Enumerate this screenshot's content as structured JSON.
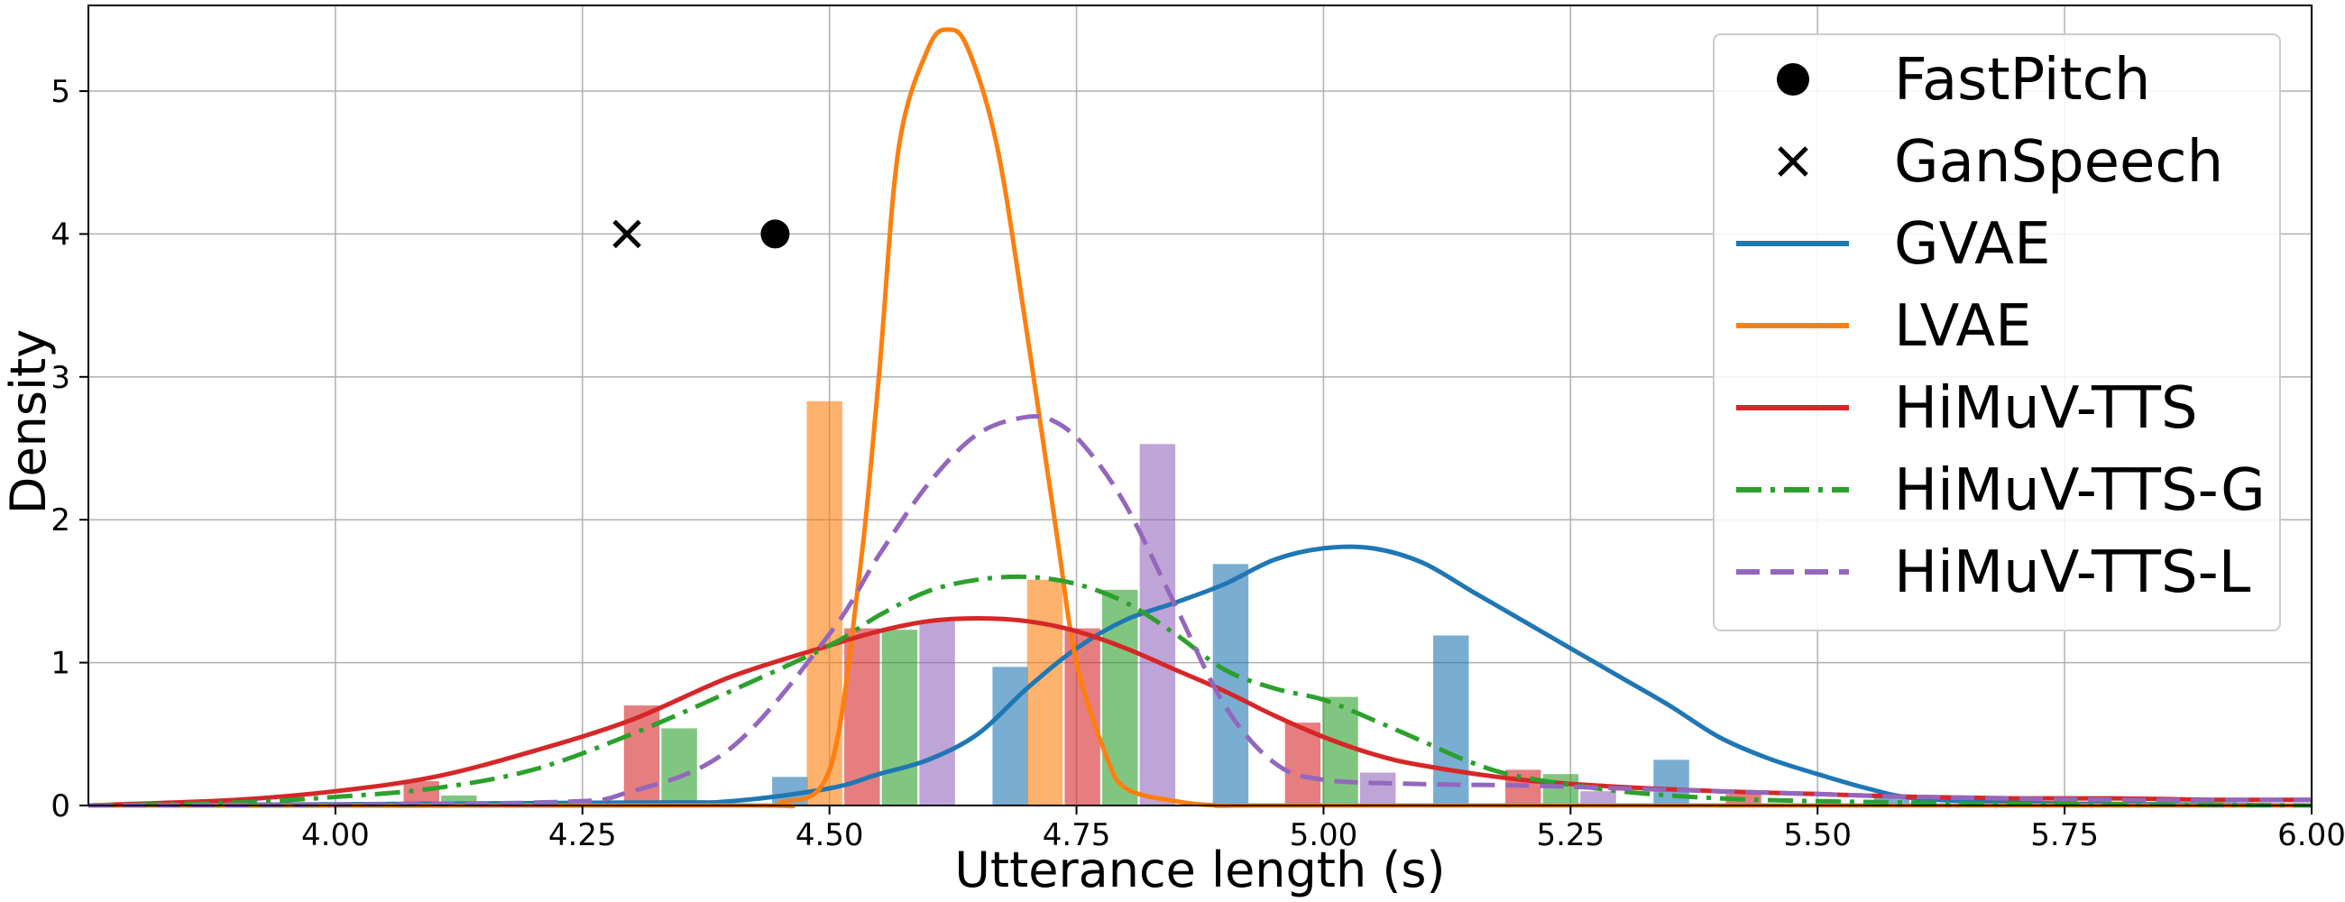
{
  "chart_data": {
    "type": "line",
    "xlabel": "Utterance length (s)",
    "ylabel": "Density",
    "xlim": [
      3.75,
      6.0
    ],
    "ylim": [
      0,
      5.6
    ],
    "xticks": [
      4.0,
      4.25,
      4.5,
      4.75,
      5.0,
      5.25,
      5.5,
      5.75,
      6.0
    ],
    "xtick_labels": [
      "4.00",
      "4.25",
      "4.50",
      "4.75",
      "5.00",
      "5.25",
      "5.50",
      "5.75",
      "6.00"
    ],
    "yticks": [
      0,
      1,
      2,
      3,
      4,
      5
    ],
    "ytick_labels": [
      "0",
      "1",
      "2",
      "3",
      "4",
      "5"
    ],
    "grid": true,
    "legend_position": "top-right",
    "points": [
      {
        "name": "FastPitch",
        "marker": "circle",
        "x": 4.445,
        "y": 4.0,
        "color": "#000000"
      },
      {
        "name": "GanSpeech",
        "marker": "x",
        "x": 4.295,
        "y": 4.0,
        "color": "#000000"
      }
    ],
    "series": [
      {
        "name": "GVAE",
        "color": "#1f77b4",
        "dash": "solid",
        "x": [
          3.75,
          4.3,
          4.4,
          4.5,
          4.55,
          4.6,
          4.65,
          4.7,
          4.75,
          4.8,
          4.85,
          4.9,
          4.95,
          5.0,
          5.05,
          5.1,
          5.15,
          5.2,
          5.25,
          5.3,
          5.35,
          5.4,
          5.45,
          5.5,
          5.55,
          5.6,
          5.7,
          5.8,
          6.0
        ],
        "y": [
          0,
          0.02,
          0.03,
          0.12,
          0.22,
          0.32,
          0.5,
          0.82,
          1.1,
          1.3,
          1.42,
          1.55,
          1.72,
          1.8,
          1.8,
          1.7,
          1.5,
          1.3,
          1.1,
          0.9,
          0.7,
          0.48,
          0.33,
          0.22,
          0.12,
          0.05,
          0.02,
          0.01,
          0.0
        ]
      },
      {
        "name": "LVAE",
        "color": "#ff7f0e",
        "dash": "solid",
        "x": [
          3.75,
          4.4,
          4.45,
          4.5,
          4.53,
          4.55,
          4.57,
          4.6,
          4.62,
          4.64,
          4.67,
          4.7,
          4.73,
          4.75,
          4.78,
          4.8,
          4.85,
          4.9,
          5.0,
          6.0
        ],
        "y": [
          0,
          0,
          0.02,
          0.25,
          1.6,
          3.0,
          4.6,
          5.3,
          5.43,
          5.3,
          4.6,
          3.3,
          1.9,
          1.0,
          0.35,
          0.12,
          0.03,
          0.0,
          0.0,
          0.0
        ]
      },
      {
        "name": "HiMuV-TTS",
        "color": "#d62728",
        "dash": "solid",
        "x": [
          3.75,
          3.9,
          4.0,
          4.1,
          4.2,
          4.3,
          4.4,
          4.5,
          4.55,
          4.6,
          4.65,
          4.7,
          4.75,
          4.8,
          4.85,
          4.9,
          4.95,
          5.0,
          5.05,
          5.1,
          5.2,
          5.3,
          5.4,
          5.5,
          5.6,
          5.7,
          5.8,
          5.9,
          6.0
        ],
        "y": [
          0,
          0.04,
          0.1,
          0.2,
          0.38,
          0.6,
          0.9,
          1.12,
          1.22,
          1.29,
          1.31,
          1.29,
          1.22,
          1.1,
          0.95,
          0.8,
          0.63,
          0.48,
          0.36,
          0.28,
          0.18,
          0.13,
          0.1,
          0.08,
          0.06,
          0.05,
          0.05,
          0.04,
          0.04
        ]
      },
      {
        "name": "HiMuV-TTS-G",
        "color": "#2ca02c",
        "dash": "dashdot",
        "x": [
          3.75,
          3.9,
          4.0,
          4.1,
          4.2,
          4.3,
          4.4,
          4.5,
          4.55,
          4.6,
          4.65,
          4.7,
          4.75,
          4.8,
          4.85,
          4.9,
          4.95,
          5.0,
          5.05,
          5.1,
          5.15,
          5.2,
          5.3,
          5.4,
          5.5,
          5.6,
          5.7,
          5.8,
          6.0
        ],
        "y": [
          0,
          0.02,
          0.06,
          0.12,
          0.25,
          0.5,
          0.8,
          1.12,
          1.33,
          1.5,
          1.58,
          1.6,
          1.55,
          1.42,
          1.2,
          0.95,
          0.82,
          0.74,
          0.6,
          0.45,
          0.3,
          0.2,
          0.1,
          0.05,
          0.03,
          0.02,
          0.01,
          0.01,
          0.0
        ]
      },
      {
        "name": "HiMuV-TTS-L",
        "color": "#9467bd",
        "dash": "dashed",
        "x": [
          3.75,
          4.2,
          4.3,
          4.4,
          4.5,
          4.55,
          4.6,
          4.65,
          4.7,
          4.73,
          4.76,
          4.8,
          4.85,
          4.9,
          4.95,
          5.0,
          5.1,
          5.2,
          5.3,
          5.4,
          5.5,
          5.6,
          5.8,
          6.0
        ],
        "y": [
          0,
          0.02,
          0.1,
          0.4,
          1.2,
          1.75,
          2.25,
          2.6,
          2.72,
          2.68,
          2.5,
          2.1,
          1.4,
          0.7,
          0.3,
          0.18,
          0.15,
          0.14,
          0.12,
          0.1,
          0.08,
          0.06,
          0.04,
          0.04
        ]
      }
    ],
    "histograms": [
      {
        "name": "HiMuV-TTS",
        "color": "#d62728",
        "bars": [
          {
            "x": 4.087,
            "y": 0.17
          },
          {
            "x": 4.31,
            "y": 0.7
          },
          {
            "x": 4.533,
            "y": 1.24
          },
          {
            "x": 4.756,
            "y": 1.24
          },
          {
            "x": 4.979,
            "y": 0.58
          },
          {
            "x": 5.202,
            "y": 0.25
          },
          {
            "x": 5.425,
            "y": 0.08
          }
        ]
      },
      {
        "name": "HiMuV-TTS-G",
        "color": "#2ca02c",
        "bars": [
          {
            "x": 4.125,
            "y": 0.07
          },
          {
            "x": 4.348,
            "y": 0.54
          },
          {
            "x": 4.571,
            "y": 1.23
          },
          {
            "x": 4.794,
            "y": 1.51
          },
          {
            "x": 5.017,
            "y": 0.76
          },
          {
            "x": 5.24,
            "y": 0.22
          }
        ]
      },
      {
        "name": "HiMuV-TTS-L",
        "color": "#9467bd",
        "bars": [
          {
            "x": 4.609,
            "y": 1.29
          },
          {
            "x": 4.832,
            "y": 2.53
          },
          {
            "x": 5.055,
            "y": 0.23
          },
          {
            "x": 5.278,
            "y": 0.1
          }
        ]
      },
      {
        "name": "GVAE",
        "color": "#1f77b4",
        "bars": [
          {
            "x": 4.46,
            "y": 0.2
          },
          {
            "x": 4.683,
            "y": 0.97
          },
          {
            "x": 4.906,
            "y": 1.69
          },
          {
            "x": 5.129,
            "y": 1.19
          },
          {
            "x": 5.352,
            "y": 0.32
          },
          {
            "x": 5.575,
            "y": 0.07
          }
        ]
      },
      {
        "name": "LVAE",
        "color": "#ff7f0e",
        "bars": [
          {
            "x": 4.495,
            "y": 2.83
          },
          {
            "x": 4.718,
            "y": 1.58
          }
        ]
      }
    ],
    "histogram_bar_width": 0.036,
    "legend": [
      {
        "label": "FastPitch",
        "kind": "marker-circle",
        "color": "#000000"
      },
      {
        "label": "GanSpeech",
        "kind": "marker-x",
        "color": "#000000"
      },
      {
        "label": "GVAE",
        "kind": "line",
        "dash": "solid",
        "color": "#1f77b4"
      },
      {
        "label": "LVAE",
        "kind": "line",
        "dash": "solid",
        "color": "#ff7f0e"
      },
      {
        "label": "HiMuV-TTS",
        "kind": "line",
        "dash": "solid",
        "color": "#d62728"
      },
      {
        "label": "HiMuV-TTS-G",
        "kind": "line",
        "dash": "dashdot",
        "color": "#2ca02c"
      },
      {
        "label": "HiMuV-TTS-L",
        "kind": "line",
        "dash": "dashed",
        "color": "#9467bd"
      }
    ]
  }
}
